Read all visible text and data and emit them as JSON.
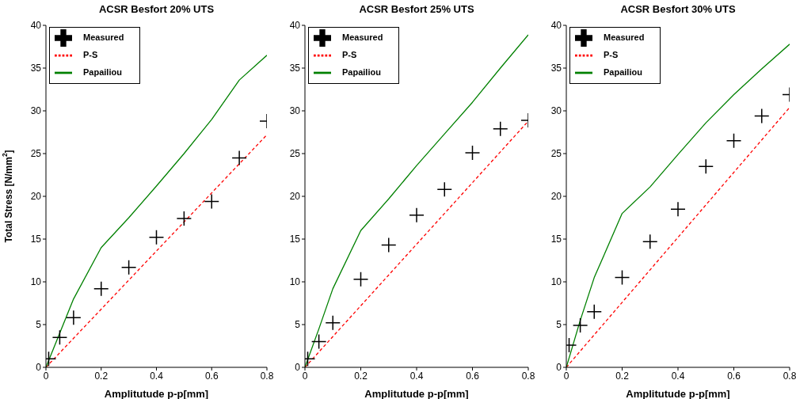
{
  "chart_data": [
    {
      "type": "line",
      "title": "ACSR Besfort 20% UTS",
      "xlabel": "Amplitutude p-p[mm]",
      "ylabel": "Total Stress [N/mm$^{2}$]",
      "xlim": [
        0,
        0.8
      ],
      "xticks": [
        0,
        0.2,
        0.4,
        0.6,
        0.8
      ],
      "ylim": [
        0,
        40
      ],
      "yticks": [
        0,
        5,
        10,
        15,
        20,
        25,
        30,
        35,
        40
      ],
      "legend": "top left",
      "grid": false,
      "series": [
        {
          "name": "Measured",
          "type": "scatter",
          "marker": "cross",
          "color": "#000000",
          "x": [
            0.01,
            0.05,
            0.1,
            0.2,
            0.3,
            0.4,
            0.5,
            0.6,
            0.7,
            0.8
          ],
          "values": [
            1.0,
            3.5,
            5.8,
            9.2,
            11.7,
            15.2,
            17.4,
            19.4,
            24.5,
            28.8
          ]
        },
        {
          "name": "P-S",
          "marker": "none",
          "line_style": "dashed",
          "color": "#ff0000",
          "x": [
            0,
            0.8
          ],
          "values": [
            0,
            27.2
          ]
        },
        {
          "name": "Papailiou",
          "marker": "none",
          "line_style": "solid",
          "color": "#008000",
          "x": [
            0,
            0.05,
            0.1,
            0.2,
            0.3,
            0.4,
            0.5,
            0.6,
            0.7,
            0.8
          ],
          "values": [
            0,
            4,
            8,
            14,
            17.5,
            21.2,
            25,
            29,
            33.6,
            36.5
          ]
        }
      ]
    },
    {
      "type": "line",
      "title": "ACSR Besfort 25% UTS",
      "xlabel": "Amplitutude p-p[mm]",
      "xlim": [
        0,
        0.8
      ],
      "xticks": [
        0,
        0.2,
        0.4,
        0.6,
        0.8
      ],
      "ylim": [
        0,
        40
      ],
      "yticks": [
        0,
        5,
        10,
        15,
        20,
        25,
        30,
        35,
        40
      ],
      "legend": "top left",
      "grid": false,
      "series": [
        {
          "name": "Measured",
          "type": "scatter",
          "marker": "cross",
          "color": "#000000",
          "x": [
            0.01,
            0.05,
            0.1,
            0.2,
            0.3,
            0.4,
            0.5,
            0.6,
            0.7,
            0.8
          ],
          "values": [
            1.0,
            3.0,
            5.2,
            10.3,
            14.3,
            17.8,
            20.8,
            25.1,
            27.9,
            28.9
          ]
        },
        {
          "name": "P-S",
          "marker": "none",
          "line_style": "dashed",
          "color": "#ff0000",
          "x": [
            0,
            0.8
          ],
          "values": [
            0,
            28.8
          ]
        },
        {
          "name": "Papailiou",
          "marker": "none",
          "line_style": "solid",
          "color": "#008000",
          "x": [
            0,
            0.05,
            0.1,
            0.2,
            0.3,
            0.4,
            0.5,
            0.6,
            0.7,
            0.8
          ],
          "values": [
            0,
            4.5,
            9.2,
            16,
            19.7,
            23.6,
            27.3,
            31,
            35,
            38.9
          ]
        }
      ]
    },
    {
      "type": "line",
      "title": "ACSR Besfort 30% UTS",
      "xlabel": "Amplitutude p-p[mm]",
      "xlim": [
        0,
        0.8
      ],
      "xticks": [
        0,
        0.2,
        0.4,
        0.6,
        0.8
      ],
      "ylim": [
        0,
        40
      ],
      "yticks": [
        0,
        5,
        10,
        15,
        20,
        25,
        30,
        35,
        40
      ],
      "legend": "top left",
      "grid": false,
      "series": [
        {
          "name": "Measured",
          "type": "scatter",
          "marker": "cross",
          "color": "#000000",
          "x": [
            0.01,
            0.05,
            0.1,
            0.2,
            0.3,
            0.4,
            0.5,
            0.6,
            0.7,
            0.8
          ],
          "values": [
            2.6,
            4.9,
            6.5,
            10.5,
            14.7,
            18.5,
            23.5,
            26.5,
            29.4,
            31.9
          ]
        },
        {
          "name": "P-S",
          "marker": "none",
          "line_style": "dashed",
          "color": "#ff0000",
          "x": [
            0,
            0.8
          ],
          "values": [
            0,
            30.4
          ]
        },
        {
          "name": "Papailiou",
          "marker": "none",
          "line_style": "solid",
          "color": "#008000",
          "x": [
            0,
            0.05,
            0.1,
            0.2,
            0.3,
            0.4,
            0.5,
            0.6,
            0.7,
            0.8
          ],
          "values": [
            0,
            5.5,
            10.5,
            18,
            21.1,
            24.9,
            28.6,
            31.9,
            34.9,
            37.8
          ]
        }
      ]
    }
  ]
}
